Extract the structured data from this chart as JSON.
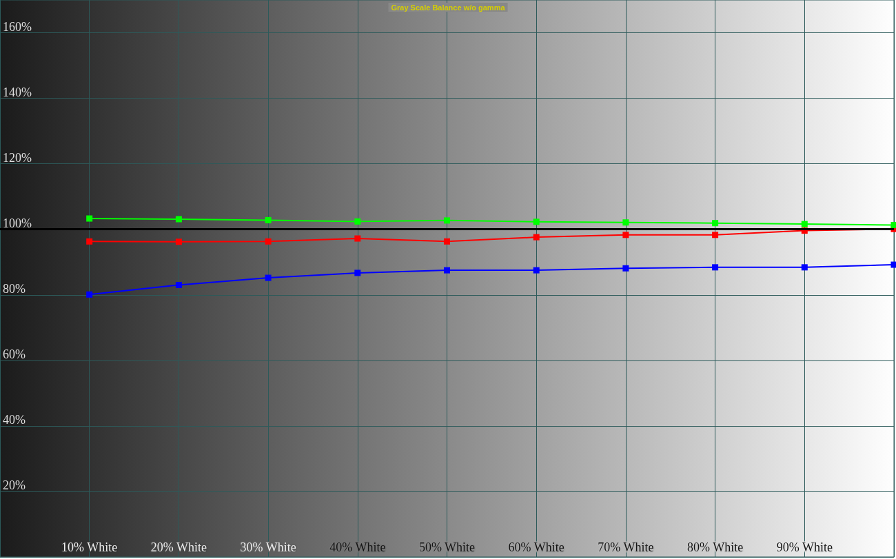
{
  "chart_data": {
    "type": "line",
    "title": "Gray Scale Balance w/o gamma",
    "x": [
      10,
      20,
      30,
      40,
      50,
      60,
      70,
      80,
      90,
      100
    ],
    "xlim": [
      0,
      100
    ],
    "xticks": [
      {
        "value": 10,
        "label": "10% White"
      },
      {
        "value": 20,
        "label": "20% White"
      },
      {
        "value": 30,
        "label": "30% White"
      },
      {
        "value": 40,
        "label": "40% White"
      },
      {
        "value": 50,
        "label": "50% White"
      },
      {
        "value": 60,
        "label": "60% White"
      },
      {
        "value": 70,
        "label": "70% White"
      },
      {
        "value": 80,
        "label": "80% White"
      },
      {
        "value": 90,
        "label": "90% White"
      },
      {
        "value": 100,
        "label": null
      }
    ],
    "ylim": [
      0,
      170
    ],
    "yticks": [
      {
        "value": 20,
        "label": "20%"
      },
      {
        "value": 40,
        "label": "40%"
      },
      {
        "value": 60,
        "label": "60%"
      },
      {
        "value": 80,
        "label": "80%"
      },
      {
        "value": 100,
        "label": "100%"
      },
      {
        "value": 120,
        "label": "120%"
      },
      {
        "value": 140,
        "label": "140%"
      },
      {
        "value": 160,
        "label": "160%"
      }
    ],
    "series": [
      {
        "color": "#ff0000",
        "values": [
          96.3,
          96.2,
          96.3,
          97.2,
          96.3,
          97.6,
          98.3,
          98.3,
          99.6,
          100.1
        ]
      },
      {
        "color": "#00ff00",
        "values": [
          103.3,
          103.1,
          102.8,
          102.4,
          102.7,
          102.3,
          102.1,
          101.9,
          101.6,
          101.3
        ]
      },
      {
        "color": "#0000ff",
        "values": [
          80.1,
          83.0,
          85.2,
          86.7,
          87.5,
          87.5,
          88.1,
          88.4,
          88.4,
          89.2
        ]
      }
    ],
    "ref_lines": [
      {
        "axis": "y",
        "value": 100,
        "color": "#000000"
      }
    ],
    "grid": true,
    "marker": "square",
    "line_style": "solid"
  }
}
